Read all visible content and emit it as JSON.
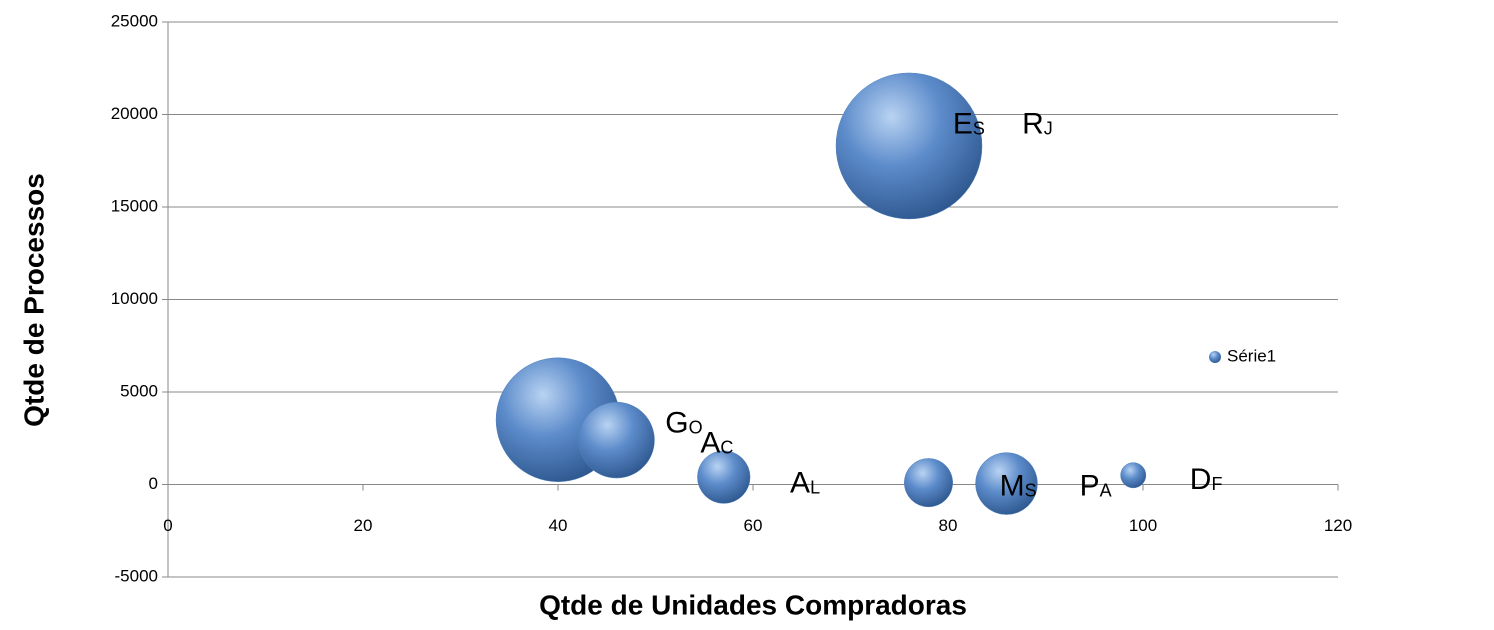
{
  "chart_data": {
    "type": "bubble",
    "xlabel": "Qtde de Unidades Compradoras",
    "ylabel": "Qtde de Processos",
    "xlim": [
      0,
      120
    ],
    "xticks": [
      0,
      20,
      40,
      60,
      80,
      100,
      120
    ],
    "ylim": [
      -5000,
      25000
    ],
    "yticks": [
      -5000,
      0,
      5000,
      10000,
      15000,
      20000,
      25000
    ],
    "grid": true,
    "legend": "right",
    "series": [
      {
        "name": "Série1",
        "color": "#4f81bd",
        "x": [
          76,
          40,
          46,
          57,
          78,
          86,
          99
        ],
        "y": [
          18300,
          3500,
          2400,
          400,
          100,
          50,
          500
        ],
        "sizes": [
          100,
          72,
          27,
          13,
          11,
          18,
          3
        ]
      }
    ],
    "annotations": [
      {
        "text": "ES",
        "x": 80.5,
        "y": 19400
      },
      {
        "text": "RJ",
        "x": 87.6,
        "y": 19400
      },
      {
        "text": "GO",
        "x": 51,
        "y": 3240
      },
      {
        "text": "AC",
        "x": 54.6,
        "y": 2160
      },
      {
        "text": "AL",
        "x": 63.8,
        "y": 0
      },
      {
        "text": "MS",
        "x": 85.3,
        "y": -160
      },
      {
        "text": "PA",
        "x": 93.5,
        "y": -160
      },
      {
        "text": "DF",
        "x": 104.8,
        "y": 200
      }
    ]
  }
}
